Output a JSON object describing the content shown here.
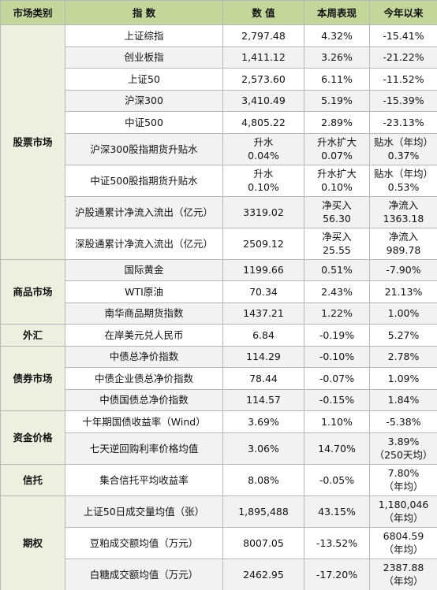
{
  "table": {
    "header": [
      "市场类别",
      "指 数",
      "数 值",
      "本周表现",
      "今年以来"
    ],
    "groups": [
      {
        "category": "股票市场",
        "rows": [
          [
            "上证综指",
            "2,797.48",
            "4.32%",
            "-15.41%"
          ],
          [
            "创业板指",
            "1,411.12",
            "3.26%",
            "-21.22%"
          ],
          [
            "上证50",
            "2,573.60",
            "6.11%",
            "-11.52%"
          ],
          [
            "沪深300",
            "3,410.49",
            "5.19%",
            "-15.39%"
          ],
          [
            "中证500",
            "4,805.22",
            "2.89%",
            "-23.13%"
          ],
          [
            "沪深300股指期货升贴水",
            [
              "升水",
              "0.04%"
            ],
            [
              "升水扩大",
              "0.07%"
            ],
            [
              "贴水（年均）",
              "0.37%"
            ]
          ],
          [
            "中证500股指期货升贴水",
            [
              "升水",
              "0.10%"
            ],
            [
              "升水扩大",
              "0.10%"
            ],
            [
              "贴水（年均）",
              "0.53%"
            ]
          ],
          [
            "沪股通累计净流入流出（亿元）",
            "3319.02",
            [
              "净买入",
              "56.30"
            ],
            [
              "净流入",
              "1363.18"
            ]
          ],
          [
            "深股通累计净流入流出（亿元）",
            "2509.12",
            [
              "净买入",
              "25.55"
            ],
            [
              "净流入",
              "989.78"
            ]
          ]
        ]
      },
      {
        "category": "商品市场",
        "rows": [
          [
            "国际黄金",
            "1199.66",
            "0.51%",
            "-7.90%"
          ],
          [
            "WTI原油",
            "70.34",
            "2.43%",
            "21.13%"
          ],
          [
            "南华商品期货指数",
            "1437.21",
            "1.22%",
            "1.00%"
          ]
        ]
      },
      {
        "category": "外汇",
        "rows": [
          [
            "在岸美元兑人民币",
            "6.84",
            "-0.19%",
            "5.27%"
          ]
        ]
      },
      {
        "category": "债券市场",
        "rows": [
          [
            "中债总净价指数",
            "114.29",
            "-0.10%",
            "2.78%"
          ],
          [
            "中债企业债总净价指数",
            "78.44",
            "-0.07%",
            "1.09%"
          ],
          [
            "中债国债总净价指数",
            "114.57",
            "-0.15%",
            "1.84%"
          ]
        ]
      },
      {
        "category": "资金价格",
        "rows": [
          [
            "十年期国债收益率（Wind）",
            "3.69%",
            "1.10%",
            "-5.38%"
          ],
          [
            "七天逆回购利率价格均值",
            "3.06%",
            "14.70%",
            [
              "3.89%",
              "（250天均）"
            ]
          ]
        ]
      },
      {
        "category": "信托",
        "rows": [
          [
            "集合信托平均收益率",
            "8.08%",
            "-0.05%",
            [
              "7.80%",
              "（年均）"
            ]
          ]
        ]
      },
      {
        "category": "期权",
        "rows": [
          [
            "上证50日成交量均值（张）",
            "1,895,488",
            "43.15%",
            [
              "1,180,046",
              "（年均）"
            ]
          ],
          [
            "豆粕成交额均值（万元）",
            "8007.05",
            "-13.52%",
            [
              "6804.59",
              "（年均）"
            ]
          ],
          [
            "白糖成交额均值（万元）",
            "2462.95",
            "-17.20%",
            [
              "2387.88",
              "（年均）"
            ]
          ]
        ]
      }
    ]
  }
}
